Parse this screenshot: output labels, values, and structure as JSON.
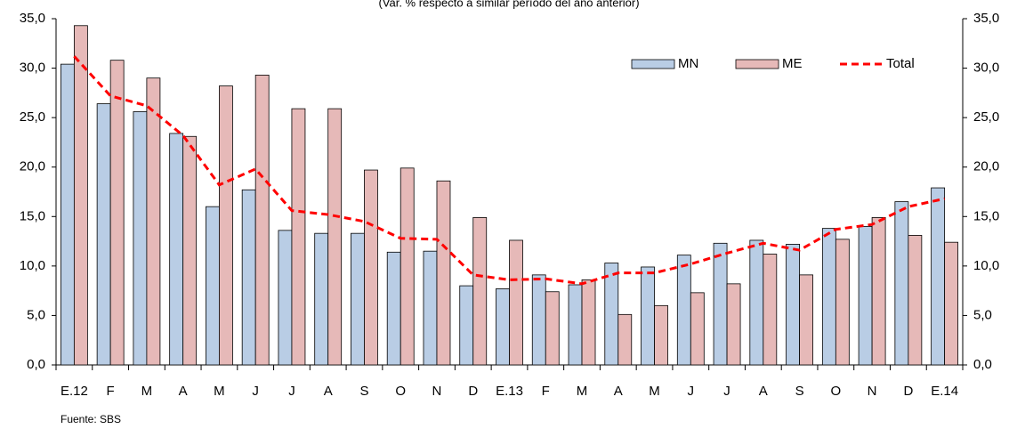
{
  "chart_data": {
    "type": "bar",
    "subtitle": "(Var. % respecto a similar período del año anterior)",
    "source": "Fuente: SBS",
    "categories": [
      "E.12",
      "F",
      "M",
      "A",
      "M",
      "J",
      "J",
      "A",
      "S",
      "O",
      "N",
      "D",
      "E.13",
      "F",
      "M",
      "A",
      "M",
      "J",
      "J",
      "A",
      "S",
      "O",
      "N",
      "D",
      "E.14"
    ],
    "series": [
      {
        "name": "MN",
        "color": "#b9cde5",
        "values": [
          30.4,
          26.4,
          25.6,
          23.4,
          16.0,
          17.7,
          13.6,
          13.3,
          13.3,
          11.4,
          11.5,
          8.0,
          7.7,
          9.1,
          8.1,
          10.3,
          9.9,
          11.1,
          12.3,
          12.6,
          12.2,
          13.8,
          14.0,
          16.5,
          17.9
        ]
      },
      {
        "name": "ME",
        "color": "#e6b9b8",
        "values": [
          34.3,
          30.8,
          29.0,
          23.1,
          28.2,
          29.3,
          25.9,
          25.9,
          19.7,
          19.9,
          18.6,
          14.9,
          12.6,
          7.4,
          8.6,
          5.1,
          6.0,
          7.3,
          8.2,
          11.2,
          9.1,
          12.7,
          14.9,
          13.1,
          12.4
        ]
      },
      {
        "name": "Total",
        "type": "line",
        "color": "#ff0000",
        "values": [
          31.2,
          27.2,
          26.2,
          23.2,
          18.2,
          19.8,
          15.6,
          15.2,
          14.5,
          12.8,
          12.7,
          9.1,
          8.6,
          8.7,
          8.2,
          9.3,
          9.3,
          10.2,
          11.3,
          12.3,
          11.6,
          13.7,
          14.2,
          16.0,
          16.8
        ]
      }
    ],
    "ylim": [
      0,
      35
    ],
    "yticks": [
      {
        "value": 0,
        "label": "0,0"
      },
      {
        "value": 5,
        "label": "5,0"
      },
      {
        "value": 10,
        "label": "10,0"
      },
      {
        "value": 15,
        "label": "15,0"
      },
      {
        "value": 20,
        "label": "20,0"
      },
      {
        "value": 25,
        "label": "25,0"
      },
      {
        "value": 30,
        "label": "30,0"
      },
      {
        "value": 35,
        "label": "35,0"
      }
    ],
    "y2lim": [
      0,
      35
    ],
    "y2ticks": [
      {
        "value": 0,
        "label": "0,0"
      },
      {
        "value": 5,
        "label": "5,0"
      },
      {
        "value": 10,
        "label": "10,0"
      },
      {
        "value": 15,
        "label": "15,0"
      },
      {
        "value": 20,
        "label": "20,0"
      },
      {
        "value": 25,
        "label": "25,0"
      },
      {
        "value": 30,
        "label": "30,0"
      },
      {
        "value": 35,
        "label": "35,0"
      }
    ],
    "legend": "upper-right"
  }
}
